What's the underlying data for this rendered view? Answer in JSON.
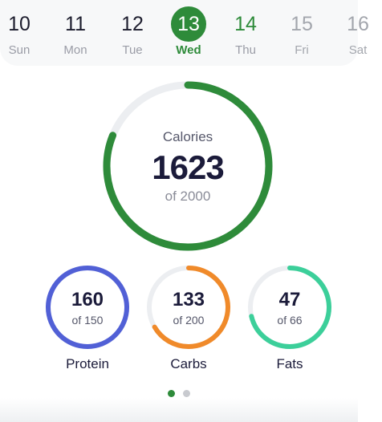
{
  "date_strip": {
    "days": [
      {
        "num": "10",
        "name": "Sun"
      },
      {
        "num": "11",
        "name": "Mon"
      },
      {
        "num": "12",
        "name": "Tue"
      },
      {
        "num": "13",
        "name": "Wed"
      },
      {
        "num": "14",
        "name": "Thu"
      },
      {
        "num": "15",
        "name": "Fri"
      },
      {
        "num": "16",
        "name": "Sat"
      }
    ],
    "selected_index": 3
  },
  "calories": {
    "label": "Calories",
    "value": "1623",
    "goal_text": "of 2000",
    "progress": 0.8115,
    "color": "#2e8b3a"
  },
  "macros": [
    {
      "name": "Protein",
      "value": "160",
      "goal_text": "of 150",
      "progress": 1.0,
      "color": "#5160d6"
    },
    {
      "name": "Carbs",
      "value": "133",
      "goal_text": "of 200",
      "progress": 0.665,
      "color": "#f08a2a"
    },
    {
      "name": "Fats",
      "value": "47",
      "goal_text": "of 66",
      "progress": 0.712,
      "color": "#3ccf9a"
    }
  ],
  "pager": {
    "pages": 2,
    "active": 0
  },
  "colors": {
    "track": "#eceef1",
    "accent": "#2e8b3a"
  }
}
